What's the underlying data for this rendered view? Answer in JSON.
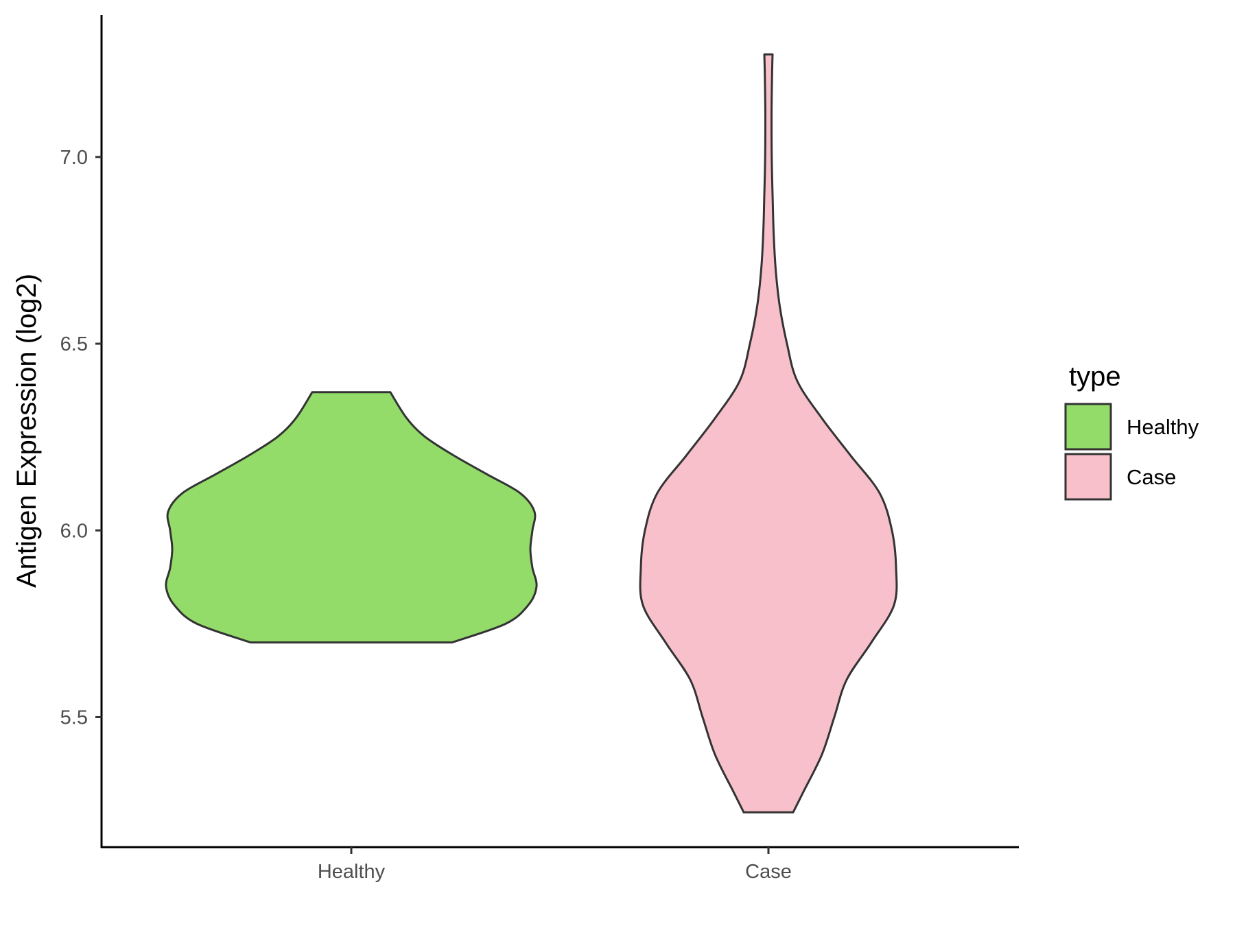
{
  "chart_data": {
    "type": "violin",
    "ylabel": "Antigen Expression (log2)",
    "xlabel": "",
    "ylim": [
      5.15,
      7.38
    ],
    "yticks": [
      5.5,
      6.0,
      6.5,
      7.0
    ],
    "ytick_labels": [
      "5.5",
      "6.0",
      "6.5",
      "7.0"
    ],
    "grid": false,
    "categories": [
      "Healthy",
      "Case"
    ],
    "legend": {
      "title": "type",
      "placement": "right",
      "entries": [
        "Healthy",
        "Case"
      ]
    },
    "series": [
      {
        "name": "Healthy",
        "color": "#93DC6A",
        "profile": [
          {
            "y": 5.7,
            "w": 0.49
          },
          {
            "y": 5.75,
            "w": 0.75
          },
          {
            "y": 5.8,
            "w": 0.86
          },
          {
            "y": 5.85,
            "w": 0.9
          },
          {
            "y": 5.9,
            "w": 0.88
          },
          {
            "y": 5.95,
            "w": 0.87
          },
          {
            "y": 6.0,
            "w": 0.88
          },
          {
            "y": 6.05,
            "w": 0.89
          },
          {
            "y": 6.1,
            "w": 0.82
          },
          {
            "y": 6.15,
            "w": 0.66
          },
          {
            "y": 6.2,
            "w": 0.5
          },
          {
            "y": 6.25,
            "w": 0.36
          },
          {
            "y": 6.3,
            "w": 0.27
          },
          {
            "y": 6.37,
            "w": 0.19
          }
        ]
      },
      {
        "name": "Case",
        "color": "#F8C0CB",
        "profile": [
          {
            "y": 5.245,
            "w": 0.12
          },
          {
            "y": 5.3,
            "w": 0.17
          },
          {
            "y": 5.4,
            "w": 0.26
          },
          {
            "y": 5.5,
            "w": 0.32
          },
          {
            "y": 5.6,
            "w": 0.38
          },
          {
            "y": 5.7,
            "w": 0.5
          },
          {
            "y": 5.8,
            "w": 0.61
          },
          {
            "y": 5.9,
            "w": 0.62
          },
          {
            "y": 6.0,
            "w": 0.6
          },
          {
            "y": 6.1,
            "w": 0.54
          },
          {
            "y": 6.2,
            "w": 0.4
          },
          {
            "y": 6.3,
            "w": 0.26
          },
          {
            "y": 6.4,
            "w": 0.14
          },
          {
            "y": 6.5,
            "w": 0.09
          },
          {
            "y": 6.6,
            "w": 0.055
          },
          {
            "y": 6.7,
            "w": 0.035
          },
          {
            "y": 6.8,
            "w": 0.025
          },
          {
            "y": 6.9,
            "w": 0.02
          },
          {
            "y": 7.0,
            "w": 0.016
          },
          {
            "y": 7.1,
            "w": 0.015
          },
          {
            "y": 7.2,
            "w": 0.017
          },
          {
            "y": 7.275,
            "w": 0.02
          }
        ]
      }
    ]
  }
}
